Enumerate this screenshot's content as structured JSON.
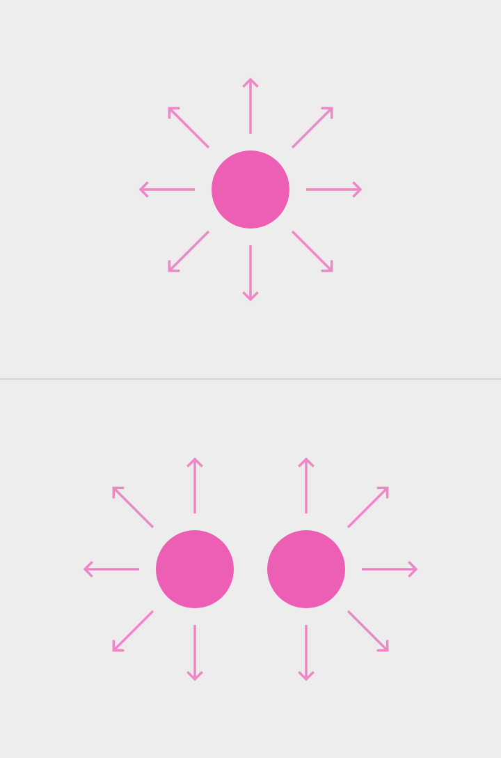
{
  "colors": {
    "background": "#ededed",
    "divider": "#d6d6d6",
    "dot": "#ec5fb5",
    "arrow": "#ed87c6"
  },
  "panels": [
    {
      "name": "single-touch-gesture",
      "touch_points": 1,
      "arrow_directions": [
        "n",
        "ne",
        "e",
        "se",
        "s",
        "sw",
        "w",
        "nw"
      ]
    },
    {
      "name": "two-finger-spread-gesture",
      "touch_points": 2,
      "arrow_directions": [
        "n",
        "ne",
        "e",
        "se",
        "s",
        "sw",
        "w",
        "nw"
      ]
    }
  ]
}
